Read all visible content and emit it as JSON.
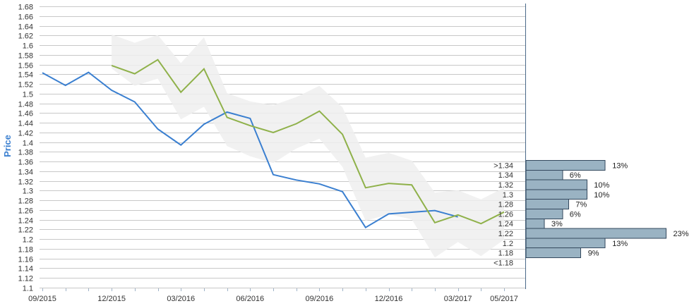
{
  "chart_data": {
    "type": "line",
    "ylabel": "Price",
    "ylim": [
      1.1,
      1.68
    ],
    "y_ticks": [
      "1.1",
      "1.12",
      "1.14",
      "1.16",
      "1.18",
      "1.2",
      "1.22",
      "1.24",
      "1.26",
      "1.28",
      "1.3",
      "1.32",
      "1.34",
      "1.36",
      "1.38",
      "1.4",
      "1.42",
      "1.44",
      "1.46",
      "1.48",
      "1.5",
      "1.52",
      "1.54",
      "1.56",
      "1.58",
      "1.6",
      "1.62",
      "1.64",
      "1.66",
      "1.68"
    ],
    "x_tick_labels": [
      "09/2015",
      "12/2015",
      "03/2016",
      "06/2016",
      "09/2016",
      "12/2016",
      "03/2017",
      "05/2017"
    ],
    "grid": true,
    "series": [
      {
        "color": "#3a7fd0",
        "points": [
          {
            "x": "09/2015",
            "y": 1.543
          },
          {
            "x": "10/2015",
            "y": 1.517
          },
          {
            "x": "11/2015",
            "y": 1.544
          },
          {
            "x": "12/2015",
            "y": 1.507
          },
          {
            "x": "01/2016",
            "y": 1.483
          },
          {
            "x": "02/2016",
            "y": 1.427
          },
          {
            "x": "03/2016",
            "y": 1.394
          },
          {
            "x": "04/2016",
            "y": 1.437
          },
          {
            "x": "05/2016",
            "y": 1.462
          },
          {
            "x": "06/2016",
            "y": 1.449
          },
          {
            "x": "07/2016",
            "y": 1.333
          },
          {
            "x": "08/2016",
            "y": 1.322
          },
          {
            "x": "09/2016",
            "y": 1.314
          },
          {
            "x": "10/2016",
            "y": 1.298
          },
          {
            "x": "11/2016",
            "y": 1.224
          },
          {
            "x": "12/2016",
            "y": 1.252
          },
          {
            "x": "02/2017",
            "y": 1.259
          },
          {
            "x": "03/2017",
            "y": 1.246
          }
        ]
      },
      {
        "color": "#8fb14a",
        "points": [
          {
            "x": "12/2015",
            "y": 1.558
          },
          {
            "x": "01/2016",
            "y": 1.541
          },
          {
            "x": "02/2016",
            "y": 1.57
          },
          {
            "x": "03/2016",
            "y": 1.503
          },
          {
            "x": "04/2016",
            "y": 1.551
          },
          {
            "x": "05/2016",
            "y": 1.451
          },
          {
            "x": "06/2016",
            "y": 1.434
          },
          {
            "x": "07/2016",
            "y": 1.42
          },
          {
            "x": "08/2016",
            "y": 1.438
          },
          {
            "x": "09/2016",
            "y": 1.464
          },
          {
            "x": "10/2016",
            "y": 1.416
          },
          {
            "x": "11/2016",
            "y": 1.306
          },
          {
            "x": "12/2016",
            "y": 1.315
          },
          {
            "x": "01/2017",
            "y": 1.312
          },
          {
            "x": "02/2017",
            "y": 1.234
          },
          {
            "x": "03/2017",
            "y": 1.25
          },
          {
            "x": "04/2017",
            "y": 1.232
          },
          {
            "x": "05/2017",
            "y": 1.256
          }
        ]
      }
    ],
    "band": {
      "x": [
        "12/2015",
        "01/2016",
        "02/2016",
        "03/2016",
        "04/2016",
        "05/2016",
        "06/2016",
        "07/2016",
        "08/2016",
        "09/2016",
        "10/2016",
        "11/2016",
        "12/2016",
        "01/2017",
        "02/2017",
        "03/2017",
        "04/2017",
        "05/2017"
      ],
      "upper": [
        1.622,
        1.605,
        1.621,
        1.563,
        1.616,
        1.501,
        1.484,
        1.476,
        1.493,
        1.516,
        1.472,
        1.368,
        1.378,
        1.362,
        1.296,
        1.301,
        1.282,
        1.306
      ],
      "lower": [
        1.552,
        1.516,
        1.531,
        1.447,
        1.473,
        1.392,
        1.371,
        1.357,
        1.387,
        1.407,
        1.349,
        1.238,
        1.251,
        1.241,
        1.162,
        1.194,
        1.165,
        1.199
      ]
    },
    "distribution": {
      "type": "bar",
      "orientation": "horizontal",
      "categories": [
        ">1.34",
        "1.34",
        "1.32",
        "1.3",
        "1.28",
        "1.26",
        "1.24",
        "1.22",
        "1.2",
        "1.18",
        "<1.18"
      ],
      "values": [
        13,
        6,
        10,
        10,
        7,
        6,
        3,
        23,
        13,
        9,
        0
      ],
      "value_labels": [
        "13%",
        "6%",
        "10%",
        "10%",
        "7%",
        "6%",
        "3%",
        "23%",
        "13%",
        "9%",
        ""
      ]
    }
  }
}
